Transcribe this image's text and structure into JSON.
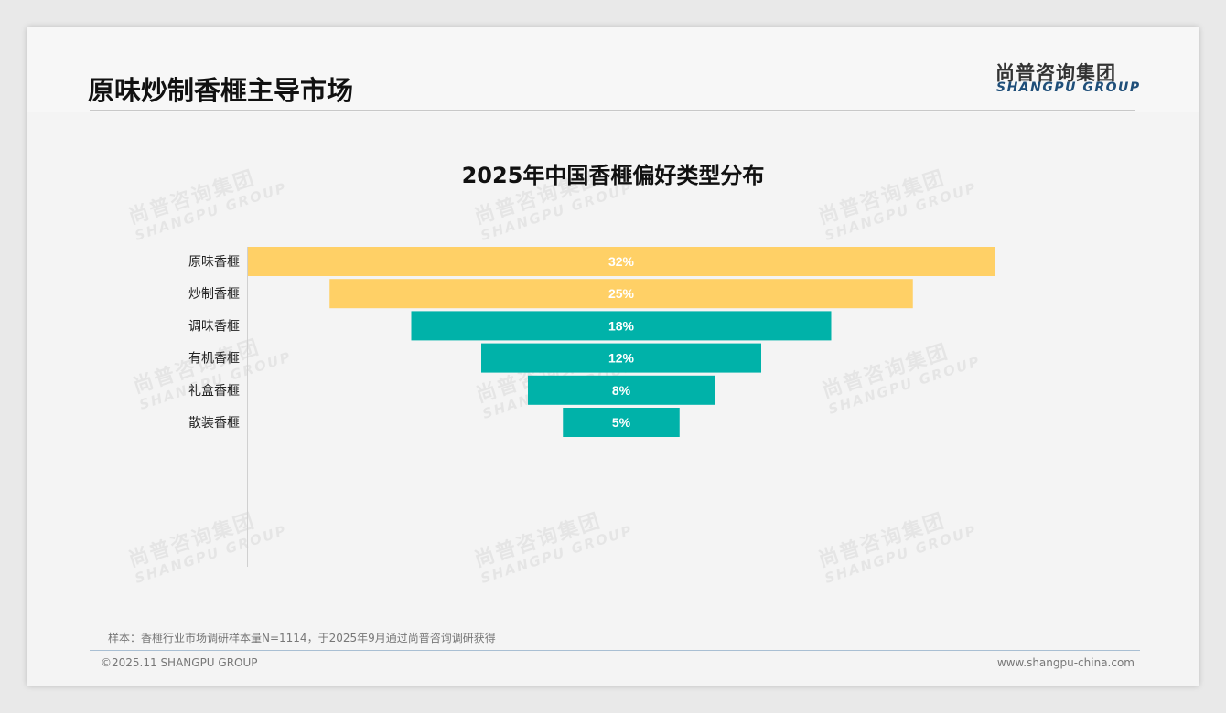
{
  "header": {
    "title": "原味炒制香榧主导市场",
    "logo_cn": "尚普咨询集团",
    "logo_en": "SHANGPU GROUP"
  },
  "watermark": {
    "cn": "尚普咨询集团",
    "en": "SHANGPU GROUP"
  },
  "chart_data": {
    "type": "bar",
    "subtype": "funnel",
    "title": "2025年中国香榧偏好类型分布",
    "categories": [
      "原味香榧",
      "炒制香榧",
      "调味香榧",
      "有机香榧",
      "礼盒香榧",
      "散装香榧"
    ],
    "values": [
      32,
      25,
      18,
      12,
      8,
      5
    ],
    "labels": [
      "32%",
      "25%",
      "18%",
      "12%",
      "8%",
      "5%"
    ],
    "colors": [
      "#ffd066",
      "#ffd066",
      "#00b2a9",
      "#00b2a9",
      "#00b2a9",
      "#00b2a9"
    ],
    "xlabel": "",
    "ylabel": "",
    "grid": false
  },
  "footer": {
    "note": "样本：香榧行业市场调研样本量N=1114，于2025年9月通过尚普咨询调研获得",
    "copyright": "©2025.11 SHANGPU GROUP",
    "url": "www.shangpu-china.com"
  }
}
